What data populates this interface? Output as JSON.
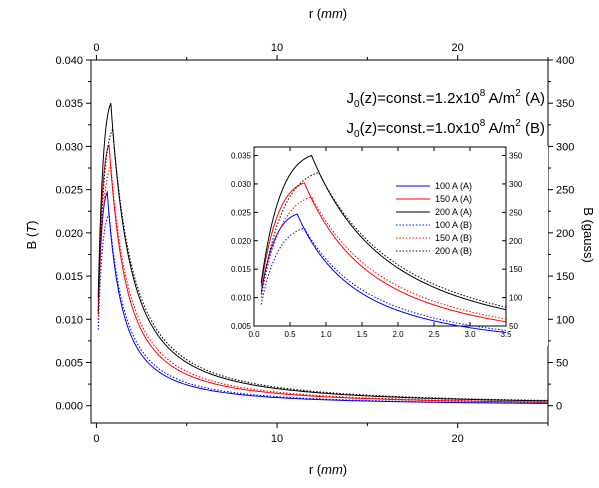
{
  "chart_data": [
    {
      "type": "line",
      "title": "",
      "xlabel": "r (mm)",
      "xlabel_top": "r (mm)",
      "ylabel": "B (T)",
      "ylabel_right": "B (gauss)",
      "xlim": [
        -0.3,
        25
      ],
      "ylim": [
        -0.002,
        0.04
      ],
      "ylim_right": [
        -20,
        400
      ],
      "xticks": [
        0,
        10,
        20
      ],
      "xticks_top": [
        0,
        10,
        20
      ],
      "yticks": [
        "0.000",
        "0.005",
        "0.010",
        "0.015",
        "0.020",
        "0.025",
        "0.030",
        "0.035",
        "0.040"
      ],
      "yticks_right": [
        0,
        50,
        100,
        150,
        200,
        250,
        300,
        350,
        400
      ],
      "annotations": [
        "J0(z)=const.=1.2x10^8 A/m^2 (A)",
        "J0(z)=const.=1.0x10^8 A/m^2 (B)"
      ],
      "annotation_parts": [
        {
          "a": "J",
          "b": "0",
          "c": "(z)=const.=1.2x10",
          "d": "8",
          "e": " A/m",
          "f": "2",
          "g": " (A)"
        },
        {
          "a": "J",
          "b": "0",
          "c": "(z)=const.=1.0x10",
          "d": "8",
          "e": " A/m",
          "f": "2",
          "g": " (B)"
        }
      ],
      "grid": false,
      "series": [
        {
          "name": "100 A (A)",
          "color": "#0000ff",
          "style": "solid",
          "peak_r": 0.6,
          "peak_B": 0.0247
        },
        {
          "name": "150 A (A)",
          "color": "#ff0000",
          "style": "solid",
          "peak_r": 0.7,
          "peak_B": 0.0302
        },
        {
          "name": "200 A (A)",
          "color": "#000000",
          "style": "solid",
          "peak_r": 0.8,
          "peak_B": 0.035
        },
        {
          "name": "100 A (B)",
          "color": "#0000ff",
          "style": "dotted",
          "peak_r": 0.7,
          "peak_B": 0.0222
        },
        {
          "name": "150 A (B)",
          "color": "#ff0000",
          "style": "dotted",
          "peak_r": 0.8,
          "peak_B": 0.0277
        },
        {
          "name": "200 A (B)",
          "color": "#000000",
          "style": "dotted",
          "peak_r": 0.9,
          "peak_B": 0.032
        }
      ]
    },
    {
      "type": "line",
      "title": "",
      "xlabel": "",
      "ylabel": "",
      "xlim": [
        0,
        3.5
      ],
      "ylim": [
        0.005,
        0.0365
      ],
      "ylim_right": [
        50,
        365
      ],
      "xticks": [
        "0.0",
        "0.5",
        "1.0",
        "1.5",
        "2.0",
        "2.5",
        "3.0",
        "3.5"
      ],
      "yticks": [
        "0.005",
        "0.010",
        "0.015",
        "0.020",
        "0.025",
        "0.030",
        "0.035"
      ],
      "yticks_right": [
        50,
        100,
        150,
        200,
        250,
        300,
        350
      ],
      "legend": "top-right",
      "grid": false,
      "x_range_shown": [
        0.1,
        3.5
      ]
    }
  ]
}
